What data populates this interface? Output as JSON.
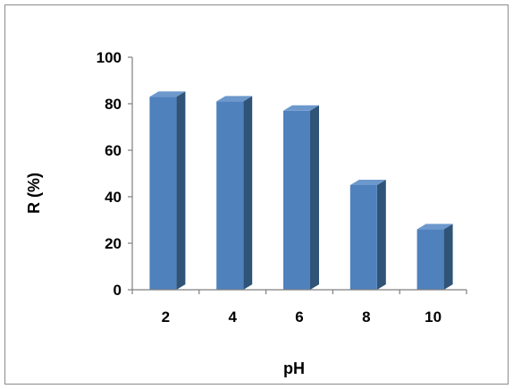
{
  "chart_data": {
    "type": "bar",
    "title": "",
    "xlabel": "pH",
    "ylabel": "R (%)",
    "categories": [
      "2",
      "4",
      "6",
      "8",
      "10"
    ],
    "values": [
      83,
      81,
      77,
      45,
      26
    ],
    "ylim": [
      0,
      100
    ],
    "yticks": [
      "0",
      "20",
      "40",
      "60",
      "80",
      "100"
    ],
    "grid": false,
    "legend": "none",
    "bar_style": "3d",
    "colors": {
      "bar_front": "#4F81BD",
      "bar_side": "#2F5478",
      "bar_top": "#6C98CC",
      "axis": "#7F7F7F",
      "frame": "#8C8C8C"
    }
  }
}
